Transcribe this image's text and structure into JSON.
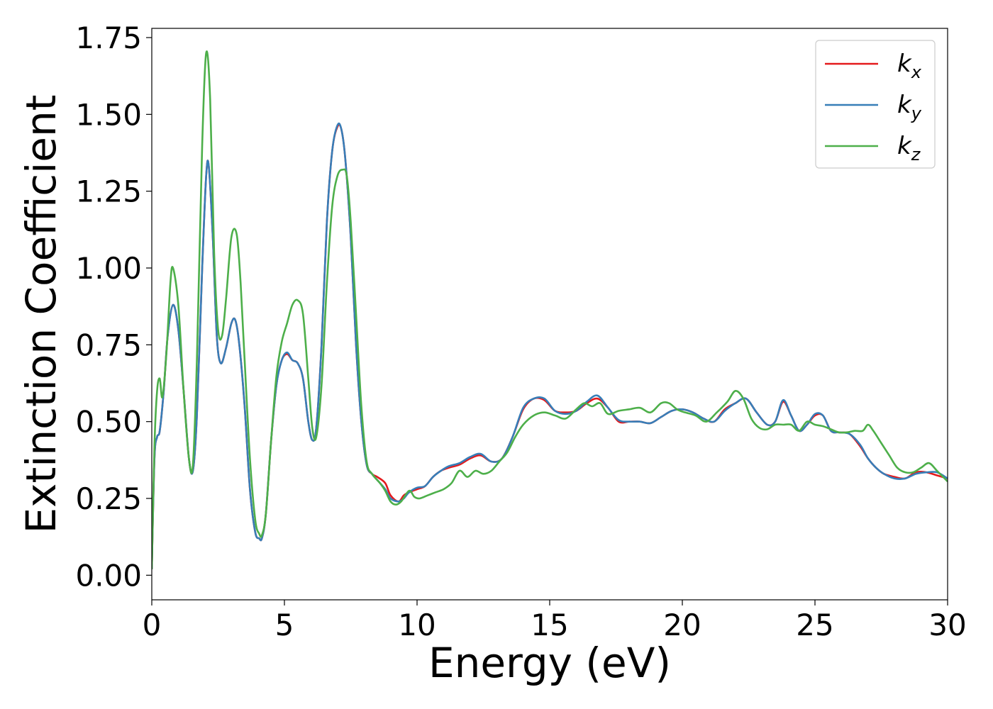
{
  "chart_data": {
    "type": "line",
    "title": "",
    "xlabel": "Energy (eV)",
    "ylabel": "Extinction Coefficient",
    "xlim": [
      0,
      30
    ],
    "ylim": [
      -0.08,
      1.78
    ],
    "xticks": [
      0,
      5,
      10,
      15,
      20,
      25,
      30
    ],
    "xtick_labels": [
      "0",
      "5",
      "10",
      "15",
      "20",
      "25",
      "30"
    ],
    "yticks": [
      0.0,
      0.25,
      0.5,
      0.75,
      1.0,
      1.25,
      1.5,
      1.75
    ],
    "ytick_labels": [
      "0.00",
      "0.25",
      "0.50",
      "0.75",
      "1.00",
      "1.25",
      "1.50",
      "1.75"
    ],
    "grid": false,
    "legend_position": "top-right",
    "series": [
      {
        "name": "k",
        "subscript": "x",
        "color": "#e41a1c",
        "x": [
          0.0,
          0.1,
          0.2,
          0.3,
          0.45,
          0.6,
          0.8,
          1.0,
          1.2,
          1.4,
          1.55,
          1.7,
          1.9,
          2.05,
          2.15,
          2.3,
          2.45,
          2.6,
          2.8,
          3.0,
          3.15,
          3.3,
          3.5,
          3.7,
          3.9,
          4.05,
          4.15,
          4.3,
          4.5,
          4.7,
          4.9,
          5.1,
          5.3,
          5.5,
          5.7,
          5.9,
          6.05,
          6.2,
          6.4,
          6.6,
          6.8,
          7.0,
          7.15,
          7.3,
          7.5,
          7.7,
          7.9,
          8.1,
          8.3,
          8.5,
          8.8,
          9.0,
          9.3,
          9.5,
          9.7,
          10.0,
          10.3,
          10.6,
          10.9,
          11.2,
          11.6,
          12.0,
          12.4,
          12.8,
          13.2,
          13.6,
          14.0,
          14.4,
          14.8,
          15.2,
          15.6,
          16.0,
          16.4,
          16.8,
          17.2,
          17.6,
          18.0,
          18.4,
          18.8,
          19.2,
          19.6,
          20.0,
          20.4,
          20.8,
          21.2,
          21.6,
          22.0,
          22.4,
          22.8,
          23.2,
          23.5,
          23.8,
          24.1,
          24.4,
          24.7,
          25.0,
          25.3,
          25.6,
          25.9,
          26.3,
          26.7,
          27.0,
          27.3,
          27.6,
          28.0,
          28.4,
          28.8,
          29.2,
          29.6,
          30.0
        ],
        "y": [
          0.02,
          0.38,
          0.45,
          0.47,
          0.6,
          0.78,
          0.88,
          0.8,
          0.6,
          0.38,
          0.34,
          0.52,
          1.0,
          1.3,
          1.33,
          1.1,
          0.78,
          0.69,
          0.74,
          0.82,
          0.83,
          0.75,
          0.55,
          0.28,
          0.14,
          0.12,
          0.12,
          0.2,
          0.44,
          0.62,
          0.7,
          0.72,
          0.7,
          0.69,
          0.64,
          0.5,
          0.44,
          0.48,
          0.75,
          1.15,
          1.38,
          1.46,
          1.45,
          1.35,
          1.1,
          0.75,
          0.5,
          0.36,
          0.33,
          0.32,
          0.3,
          0.26,
          0.24,
          0.26,
          0.27,
          0.28,
          0.29,
          0.32,
          0.34,
          0.35,
          0.36,
          0.38,
          0.39,
          0.37,
          0.38,
          0.45,
          0.54,
          0.575,
          0.57,
          0.535,
          0.53,
          0.535,
          0.56,
          0.575,
          0.545,
          0.5,
          0.5,
          0.5,
          0.495,
          0.515,
          0.535,
          0.54,
          0.53,
          0.51,
          0.5,
          0.54,
          0.56,
          0.575,
          0.53,
          0.49,
          0.5,
          0.565,
          0.52,
          0.47,
          0.49,
          0.52,
          0.52,
          0.47,
          0.465,
          0.46,
          0.42,
          0.38,
          0.35,
          0.33,
          0.32,
          0.315,
          0.335,
          0.335,
          0.325,
          0.315
        ]
      },
      {
        "name": "k",
        "subscript": "y",
        "color": "#377eb8",
        "x": [
          0.0,
          0.1,
          0.2,
          0.3,
          0.45,
          0.6,
          0.8,
          1.0,
          1.2,
          1.4,
          1.55,
          1.7,
          1.9,
          2.05,
          2.15,
          2.3,
          2.45,
          2.6,
          2.8,
          3.0,
          3.15,
          3.3,
          3.5,
          3.7,
          3.9,
          4.05,
          4.15,
          4.3,
          4.5,
          4.7,
          4.9,
          5.1,
          5.3,
          5.5,
          5.7,
          5.9,
          6.05,
          6.2,
          6.4,
          6.6,
          6.8,
          7.0,
          7.15,
          7.3,
          7.5,
          7.7,
          7.9,
          8.1,
          8.3,
          8.5,
          8.8,
          9.0,
          9.3,
          9.5,
          9.7,
          10.0,
          10.3,
          10.6,
          10.9,
          11.2,
          11.6,
          12.0,
          12.4,
          12.8,
          13.2,
          13.6,
          14.0,
          14.4,
          14.8,
          15.2,
          15.6,
          16.0,
          16.4,
          16.8,
          17.2,
          17.6,
          18.0,
          18.4,
          18.8,
          19.2,
          19.6,
          20.0,
          20.4,
          20.8,
          21.2,
          21.6,
          22.0,
          22.4,
          22.8,
          23.2,
          23.5,
          23.8,
          24.1,
          24.4,
          24.7,
          25.0,
          25.3,
          25.6,
          25.9,
          26.3,
          26.7,
          27.0,
          27.3,
          27.6,
          28.0,
          28.4,
          28.8,
          29.2,
          29.6,
          30.0
        ],
        "y": [
          0.02,
          0.38,
          0.45,
          0.47,
          0.6,
          0.78,
          0.88,
          0.8,
          0.6,
          0.38,
          0.34,
          0.52,
          1.0,
          1.3,
          1.33,
          1.1,
          0.78,
          0.69,
          0.74,
          0.82,
          0.83,
          0.75,
          0.55,
          0.28,
          0.14,
          0.12,
          0.12,
          0.2,
          0.44,
          0.62,
          0.7,
          0.725,
          0.7,
          0.69,
          0.64,
          0.5,
          0.44,
          0.48,
          0.75,
          1.15,
          1.38,
          1.465,
          1.45,
          1.35,
          1.1,
          0.75,
          0.5,
          0.36,
          0.33,
          0.31,
          0.28,
          0.25,
          0.24,
          0.25,
          0.27,
          0.285,
          0.29,
          0.32,
          0.34,
          0.355,
          0.365,
          0.385,
          0.395,
          0.37,
          0.38,
          0.45,
          0.545,
          0.575,
          0.575,
          0.535,
          0.525,
          0.535,
          0.565,
          0.585,
          0.545,
          0.505,
          0.5,
          0.5,
          0.495,
          0.515,
          0.535,
          0.54,
          0.53,
          0.51,
          0.5,
          0.535,
          0.56,
          0.575,
          0.53,
          0.49,
          0.5,
          0.57,
          0.52,
          0.47,
          0.49,
          0.525,
          0.52,
          0.47,
          0.465,
          0.46,
          0.425,
          0.38,
          0.35,
          0.33,
          0.315,
          0.315,
          0.33,
          0.335,
          0.335,
          0.315
        ]
      },
      {
        "name": "k",
        "subscript": "z",
        "color": "#4daf4a",
        "x": [
          0.0,
          0.1,
          0.2,
          0.3,
          0.4,
          0.55,
          0.7,
          0.8,
          1.0,
          1.2,
          1.4,
          1.55,
          1.7,
          1.9,
          2.05,
          2.2,
          2.35,
          2.5,
          2.65,
          2.8,
          3.0,
          3.2,
          3.35,
          3.5,
          3.7,
          3.9,
          4.05,
          4.15,
          4.3,
          4.5,
          4.7,
          4.9,
          5.1,
          5.3,
          5.5,
          5.7,
          5.9,
          6.05,
          6.2,
          6.4,
          6.6,
          6.8,
          7.0,
          7.2,
          7.35,
          7.5,
          7.7,
          7.9,
          8.1,
          8.3,
          8.6,
          8.8,
          9.0,
          9.2,
          9.4,
          9.7,
          9.9,
          10.1,
          10.4,
          10.7,
          11.0,
          11.3,
          11.6,
          11.9,
          12.2,
          12.5,
          12.8,
          13.1,
          13.4,
          13.7,
          14.0,
          14.4,
          14.8,
          15.2,
          15.6,
          16.0,
          16.3,
          16.6,
          16.9,
          17.2,
          17.6,
          18.0,
          18.4,
          18.8,
          19.2,
          19.5,
          19.8,
          20.1,
          20.5,
          20.9,
          21.3,
          21.7,
          22.0,
          22.3,
          22.6,
          22.9,
          23.2,
          23.5,
          23.8,
          24.1,
          24.4,
          24.7,
          25.0,
          25.3,
          25.6,
          25.9,
          26.2,
          26.5,
          26.8,
          27.0,
          27.2,
          27.5,
          27.8,
          28.1,
          28.4,
          28.7,
          29.0,
          29.3,
          29.6,
          30.0
        ],
        "y": [
          0.02,
          0.42,
          0.6,
          0.64,
          0.58,
          0.72,
          0.95,
          1.0,
          0.88,
          0.6,
          0.38,
          0.36,
          0.7,
          1.4,
          1.7,
          1.55,
          1.05,
          0.8,
          0.78,
          0.9,
          1.1,
          1.11,
          0.95,
          0.7,
          0.38,
          0.18,
          0.135,
          0.13,
          0.2,
          0.44,
          0.65,
          0.76,
          0.82,
          0.88,
          0.895,
          0.85,
          0.64,
          0.48,
          0.45,
          0.62,
          0.95,
          1.2,
          1.3,
          1.32,
          1.3,
          1.15,
          0.85,
          0.55,
          0.37,
          0.33,
          0.3,
          0.275,
          0.24,
          0.23,
          0.24,
          0.275,
          0.255,
          0.25,
          0.26,
          0.27,
          0.28,
          0.3,
          0.34,
          0.32,
          0.34,
          0.33,
          0.34,
          0.37,
          0.4,
          0.45,
          0.49,
          0.52,
          0.53,
          0.52,
          0.51,
          0.54,
          0.56,
          0.55,
          0.56,
          0.525,
          0.535,
          0.54,
          0.545,
          0.53,
          0.56,
          0.56,
          0.54,
          0.53,
          0.52,
          0.5,
          0.53,
          0.565,
          0.6,
          0.575,
          0.51,
          0.48,
          0.475,
          0.49,
          0.49,
          0.49,
          0.47,
          0.5,
          0.49,
          0.485,
          0.475,
          0.465,
          0.465,
          0.47,
          0.47,
          0.49,
          0.47,
          0.43,
          0.39,
          0.35,
          0.335,
          0.335,
          0.35,
          0.365,
          0.34,
          0.305
        ]
      }
    ]
  }
}
